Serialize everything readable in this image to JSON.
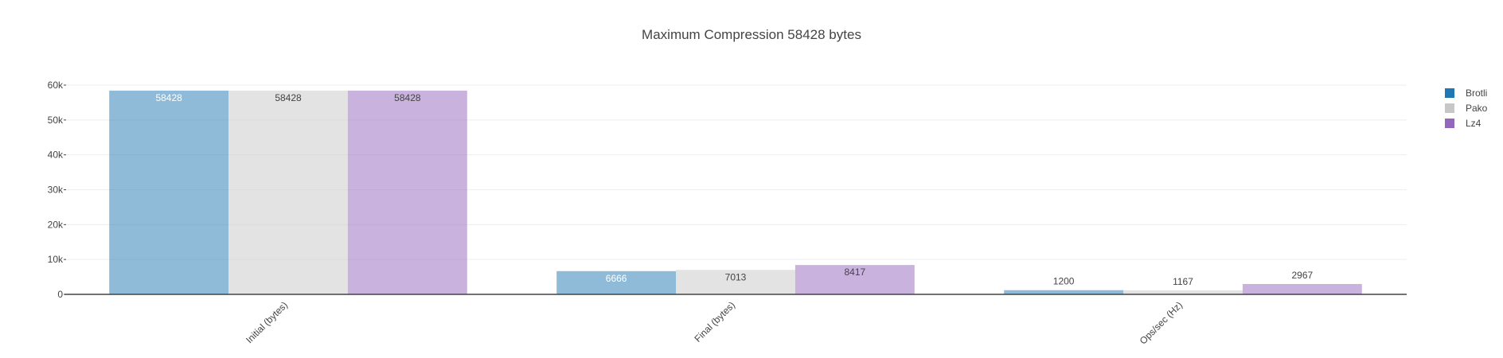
{
  "chart_data": {
    "type": "bar",
    "title": "Maximum Compression 58428 bytes",
    "xlabel": "",
    "ylabel": "",
    "categories": [
      "Initial (bytes)",
      "Final (bytes)",
      "Ops/sec (Hz)"
    ],
    "series": [
      {
        "name": "Brotli",
        "color": "#1f77b4",
        "values": [
          58428,
          6666,
          1200
        ]
      },
      {
        "name": "Pako",
        "color": "#c7c7c7",
        "values": [
          58428,
          7013,
          1167
        ]
      },
      {
        "name": "Lz4",
        "color": "#9467bd",
        "values": [
          58428,
          8417,
          2967
        ]
      }
    ],
    "ylim": [
      0,
      60000
    ],
    "yticks": [
      {
        "value": 0,
        "label": "0"
      },
      {
        "value": 10000,
        "label": "10k"
      },
      {
        "value": 20000,
        "label": "20k"
      },
      {
        "value": 30000,
        "label": "30k"
      },
      {
        "value": 40000,
        "label": "40k"
      },
      {
        "value": 50000,
        "label": "50k"
      },
      {
        "value": 60000,
        "label": "60k"
      }
    ],
    "grid": true,
    "legend_position": "top-right",
    "bar_opacity": 0.5
  }
}
